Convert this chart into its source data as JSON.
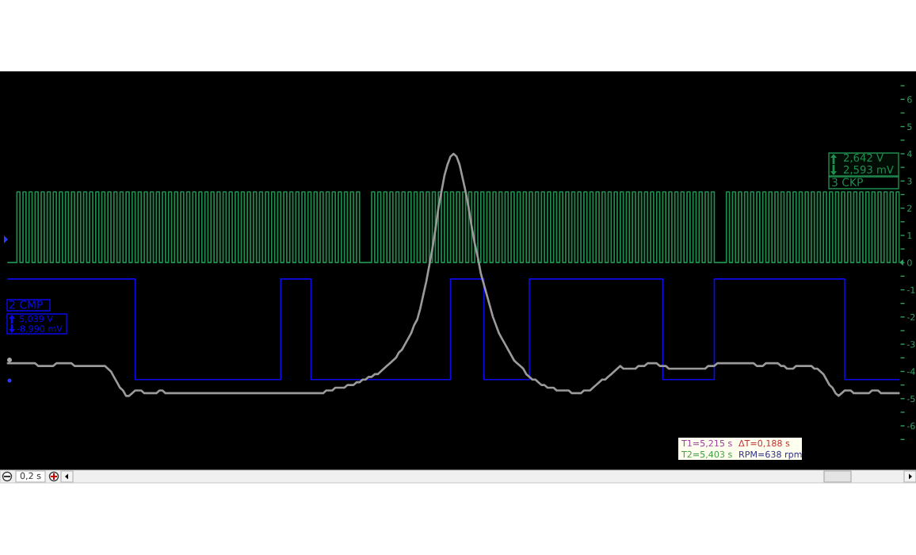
{
  "chart_data": {
    "type": "line",
    "tick_labels": "y",
    "categories": [
      null,
      null,
      null,
      null,
      null,
      null,
      null,
      null,
      null,
      null,
      null,
      null,
      null,
      null,
      null,
      null,
      null,
      null,
      null,
      null,
      null,
      null,
      null,
      null,
      null,
      null,
      null,
      null,
      null,
      null,
      null,
      null,
      null,
      null,
      null,
      null,
      null,
      null,
      null,
      null,
      null,
      null,
      null,
      null,
      null,
      null,
      null,
      null,
      null,
      null,
      null,
      null,
      null,
      null,
      null,
      null,
      null,
      null,
      null,
      null,
      null,
      null,
      null,
      null,
      null,
      null,
      null,
      null,
      null,
      null,
      null,
      null,
      null,
      null,
      null,
      null,
      null,
      null,
      null,
      null,
      null,
      null,
      null,
      null,
      null,
      null,
      null,
      null,
      null,
      null,
      null,
      null,
      null,
      null,
      null,
      null,
      null,
      null,
      null,
      null,
      null,
      null,
      null,
      null,
      null,
      null,
      null,
      null,
      null,
      null,
      null,
      null,
      null,
      null,
      null,
      null,
      null,
      null,
      null,
      null,
      null,
      null,
      null,
      null,
      null,
      null,
      null,
      null,
      null,
      null,
      null,
      null,
      null,
      null,
      null,
      null,
      null,
      null,
      null,
      null,
      null,
      null,
      null,
      null,
      null,
      null,
      null,
      null,
      null,
      null,
      null,
      null,
      null,
      null,
      null,
      null,
      null,
      null,
      null,
      null,
      null,
      null,
      null,
      null,
      null,
      null,
      null,
      null,
      null,
      null,
      null,
      null,
      null,
      null,
      null,
      null,
      null,
      null,
      null,
      null,
      null,
      null,
      null,
      null,
      null,
      null,
      null,
      null,
      null,
      null,
      null,
      null,
      null,
      null,
      null,
      null,
      null,
      null,
      null,
      null,
      null,
      null,
      null,
      null,
      null,
      null,
      null,
      null,
      null,
      null,
      null,
      null,
      null,
      null,
      null,
      null,
      null,
      null,
      null,
      null,
      null,
      null,
      null,
      null,
      null,
      null,
      null,
      null,
      null,
      null,
      null,
      null,
      null,
      null,
      null,
      null,
      null,
      null,
      null,
      null,
      null,
      null,
      null,
      null,
      null,
      null,
      null,
      null,
      null,
      null,
      null,
      null,
      null,
      null,
      null,
      null,
      null,
      null,
      null,
      null,
      null,
      null,
      null,
      null,
      null,
      null,
      null,
      null,
      null,
      null,
      null,
      null,
      null,
      null,
      null,
      null,
      null,
      null,
      null,
      null,
      null,
      null,
      null,
      null,
      null,
      null,
      null,
      null,
      null,
      null,
      null,
      null,
      null,
      null,
      null
    ],
    "series": [
      {
        "name": "3 CKP",
        "type": "step",
        "color": "#1f8f4f",
        "values": [
          0,
          0,
          0,
          2.6,
          0,
          2.6,
          0,
          2.6,
          0,
          2.6,
          0,
          2.6,
          0,
          2.6,
          0,
          2.6,
          0,
          2.6,
          0,
          2.6,
          0,
          2.6,
          0,
          2.6,
          0,
          2.6,
          0,
          2.6,
          0,
          2.6,
          0,
          2.6,
          0,
          2.6,
          0,
          2.6,
          0,
          2.6,
          0,
          2.6,
          0,
          2.6,
          0,
          2.6,
          0,
          2.6,
          0,
          2.6,
          0,
          2.6,
          0,
          2.6,
          0,
          2.6,
          0,
          2.6,
          0,
          2.6,
          0,
          2.6,
          0,
          2.6,
          0,
          2.6,
          0,
          2.6,
          0,
          2.6,
          0,
          2.6,
          0,
          2.6,
          0,
          2.6,
          0,
          2.6,
          0,
          2.6,
          0,
          2.6,
          0,
          2.6,
          0,
          2.6,
          0,
          2.6,
          0,
          2.6,
          0,
          2.6,
          0,
          2.6,
          0,
          2.6,
          0,
          2.6,
          0,
          2.6,
          0,
          2.6,
          0,
          2.6,
          0,
          2.6,
          0,
          2.6,
          0,
          2.6,
          0,
          2.6,
          0,
          2.6,
          0,
          2.6,
          0,
          2.6,
          0,
          0,
          0,
          0,
          2.6,
          0,
          2.6,
          0,
          2.6,
          0,
          2.6,
          0,
          2.6,
          0,
          2.6,
          0,
          2.6,
          0,
          2.6,
          0,
          2.6,
          0,
          2.6,
          0,
          2.6,
          0,
          2.6,
          0,
          2.6,
          0,
          2.6,
          0,
          2.6,
          0,
          2.6,
          0,
          2.6,
          0,
          2.6,
          0,
          2.6,
          0,
          2.6,
          0,
          2.6,
          0,
          2.6,
          0,
          2.6,
          0,
          2.6,
          0,
          2.6,
          0,
          2.6,
          0,
          2.6,
          0,
          2.6,
          0,
          2.6,
          0,
          2.6,
          0,
          2.6,
          0,
          2.6,
          0,
          2.6,
          0,
          2.6,
          0,
          2.6,
          0,
          2.6,
          0,
          2.6,
          0,
          2.6,
          0,
          2.6,
          0,
          2.6,
          0,
          2.6,
          0,
          2.6,
          0,
          2.6,
          0,
          2.6,
          0,
          2.6,
          0,
          2.6,
          0,
          2.6,
          0,
          2.6,
          0,
          2.6,
          0,
          2.6,
          0,
          2.6,
          0,
          2.6,
          0,
          2.6,
          0,
          2.6,
          0,
          2.6,
          0,
          2.6,
          0,
          2.6,
          0,
          0,
          0,
          0,
          2.6,
          0,
          2.6,
          0,
          2.6,
          0,
          2.6,
          0,
          2.6,
          0,
          2.6,
          0,
          2.6,
          0,
          2.6,
          0,
          2.6,
          0,
          2.6,
          0,
          2.6,
          0,
          2.6,
          0,
          2.6,
          0,
          2.6,
          0,
          2.6,
          0,
          2.6,
          0,
          2.6,
          0,
          2.6,
          0,
          2.6,
          0,
          2.6,
          0,
          2.6,
          0,
          2.6,
          0,
          2.6,
          0,
          2.6,
          0,
          2.6,
          0,
          2.6,
          0,
          2.6,
          0,
          2.6,
          0,
          2.6,
          0
        ]
      },
      {
        "name": "2 CMP",
        "type": "step",
        "color": "#0a0aeb",
        "values": [
          -0.6,
          -0.6,
          -0.6,
          -0.6,
          -0.6,
          -0.6,
          -0.6,
          -0.6,
          -0.6,
          -0.6,
          -0.6,
          -0.6,
          -0.6,
          -0.6,
          -0.6,
          -0.6,
          -0.6,
          -0.6,
          -0.6,
          -0.6,
          -0.6,
          -0.6,
          -0.6,
          -0.6,
          -0.6,
          -0.6,
          -0.6,
          -0.6,
          -0.6,
          -0.6,
          -0.6,
          -0.6,
          -0.6,
          -0.6,
          -0.6,
          -0.6,
          -0.6,
          -0.6,
          -0.6,
          -0.6,
          -0.6,
          -0.6,
          -4.3,
          -4.3,
          -4.3,
          -4.3,
          -4.3,
          -4.3,
          -4.3,
          -4.3,
          -4.3,
          -4.3,
          -4.3,
          -4.3,
          -4.3,
          -4.3,
          -4.3,
          -4.3,
          -4.3,
          -4.3,
          -4.3,
          -4.3,
          -4.3,
          -4.3,
          -4.3,
          -4.3,
          -4.3,
          -4.3,
          -4.3,
          -4.3,
          -4.3,
          -4.3,
          -4.3,
          -4.3,
          -4.3,
          -4.3,
          -4.3,
          -4.3,
          -4.3,
          -4.3,
          -4.3,
          -4.3,
          -4.3,
          -4.3,
          -4.3,
          -4.3,
          -4.3,
          -4.3,
          -4.3,
          -4.3,
          -0.6,
          -0.6,
          -0.6,
          -0.6,
          -0.6,
          -0.6,
          -0.6,
          -0.6,
          -0.6,
          -0.6,
          -4.3,
          -4.3,
          -4.3,
          -4.3,
          -4.3,
          -4.3,
          -4.3,
          -4.3,
          -4.3,
          -4.3,
          -4.3,
          -4.3,
          -4.3,
          -4.3,
          -4.3,
          -4.3,
          -4.3,
          -4.3,
          -4.3,
          -4.3,
          -4.3,
          -4.3,
          -4.3,
          -4.3,
          -4.3,
          -4.3,
          -4.3,
          -4.3,
          -4.3,
          -4.3,
          -4.3,
          -4.3,
          -4.3,
          -4.3,
          -4.3,
          -4.3,
          -4.3,
          -4.3,
          -4.3,
          -4.3,
          -4.3,
          -4.3,
          -4.3,
          -4.3,
          -4.3,
          -4.3,
          -0.6,
          -0.6,
          -0.6,
          -0.6,
          -0.6,
          -0.6,
          -0.6,
          -0.6,
          -0.6,
          -0.6,
          -0.6,
          -4.3,
          -4.3,
          -4.3,
          -4.3,
          -4.3,
          -4.3,
          -4.3,
          -4.3,
          -4.3,
          -4.3,
          -4.3,
          -4.3,
          -4.3,
          -4.3,
          -4.3,
          -0.6,
          -0.6,
          -0.6,
          -0.6,
          -0.6,
          -0.6,
          -0.6,
          -0.6,
          -0.6,
          -0.6,
          -0.6,
          -0.6,
          -0.6,
          -0.6,
          -0.6,
          -0.6,
          -0.6,
          -0.6,
          -0.6,
          -0.6,
          -0.6,
          -0.6,
          -0.6,
          -0.6,
          -0.6,
          -0.6,
          -0.6,
          -0.6,
          -0.6,
          -0.6,
          -0.6,
          -0.6,
          -0.6,
          -0.6,
          -0.6,
          -0.6,
          -0.6,
          -0.6,
          -0.6,
          -0.6,
          -0.6,
          -0.6,
          -0.6,
          -0.6,
          -4.3,
          -4.3,
          -4.3,
          -4.3,
          -4.3,
          -4.3,
          -4.3,
          -4.3,
          -4.3,
          -4.3,
          -4.3,
          -4.3,
          -4.3,
          -4.3,
          -4.3,
          -4.3,
          -4.3,
          -0.6,
          -0.6,
          -0.6,
          -0.6,
          -0.6,
          -0.6,
          -0.6,
          -0.6,
          -0.6,
          -0.6,
          -0.6,
          -0.6,
          -0.6,
          -0.6,
          -0.6,
          -0.6,
          -0.6,
          -0.6,
          -0.6,
          -0.6,
          -0.6,
          -0.6,
          -0.6,
          -0.6,
          -0.6,
          -0.6,
          -0.6,
          -0.6,
          -0.6,
          -0.6,
          -0.6,
          -0.6,
          -0.6,
          -0.6,
          -0.6,
          -0.6,
          -0.6,
          -0.6,
          -0.6,
          -0.6,
          -0.6,
          -0.6,
          -0.6,
          -4.3,
          -4.3,
          -4.3,
          -4.3,
          -4.3,
          -4.3,
          -4.3,
          -4.3,
          -4.3,
          -4.3,
          -4.3,
          -4.3,
          -4.3,
          -4.3,
          -4.3,
          -4.3,
          -4.3,
          -4.3,
          -4.3
        ]
      },
      {
        "color": "#9a9a9a",
        "values": [
          -3.7,
          -3.7,
          -3.7,
          -3.7,
          -3.7,
          -3.7,
          -3.7,
          -3.7,
          -3.7,
          -3.7,
          -3.8,
          -3.8,
          -3.8,
          -3.8,
          -3.8,
          -3.8,
          -3.7,
          -3.7,
          -3.7,
          -3.7,
          -3.7,
          -3.7,
          -3.8,
          -3.8,
          -3.8,
          -3.8,
          -3.8,
          -3.8,
          -3.8,
          -3.8,
          -3.8,
          -3.8,
          -3.8,
          -3.9,
          -4.0,
          -4.2,
          -4.4,
          -4.6,
          -4.7,
          -4.9,
          -4.9,
          -4.8,
          -4.7,
          -4.7,
          -4.7,
          -4.8,
          -4.8,
          -4.8,
          -4.8,
          -4.8,
          -4.7,
          -4.7,
          -4.8,
          -4.8,
          -4.8,
          -4.8,
          -4.8,
          -4.8,
          -4.8,
          -4.8,
          -4.8,
          -4.8,
          -4.8,
          -4.8,
          -4.8,
          -4.8,
          -4.8,
          -4.8,
          -4.8,
          -4.8,
          -4.8,
          -4.8,
          -4.8,
          -4.8,
          -4.8,
          -4.8,
          -4.8,
          -4.8,
          -4.8,
          -4.8,
          -4.8,
          -4.8,
          -4.8,
          -4.8,
          -4.8,
          -4.8,
          -4.8,
          -4.8,
          -4.8,
          -4.8,
          -4.8,
          -4.8,
          -4.8,
          -4.8,
          -4.8,
          -4.8,
          -4.8,
          -4.8,
          -4.8,
          -4.8,
          -4.8,
          -4.8,
          -4.8,
          -4.8,
          -4.8,
          -4.7,
          -4.7,
          -4.7,
          -4.6,
          -4.6,
          -4.6,
          -4.6,
          -4.5,
          -4.5,
          -4.5,
          -4.4,
          -4.4,
          -4.3,
          -4.3,
          -4.2,
          -4.2,
          -4.1,
          -4.1,
          -4.0,
          -3.9,
          -3.8,
          -3.7,
          -3.6,
          -3.5,
          -3.3,
          -3.2,
          -3.0,
          -2.8,
          -2.6,
          -2.3,
          -2.1,
          -1.7,
          -1.2,
          -0.7,
          -0.1,
          0.5,
          1.2,
          2.0,
          2.6,
          3.2,
          3.6,
          3.9,
          4.0,
          3.9,
          3.6,
          3.1,
          2.6,
          2.0,
          1.3,
          0.7,
          0.2,
          -0.4,
          -0.8,
          -1.2,
          -1.6,
          -2.0,
          -2.3,
          -2.6,
          -2.8,
          -3.0,
          -3.2,
          -3.4,
          -3.6,
          -3.7,
          -3.8,
          -3.9,
          -4.1,
          -4.2,
          -4.3,
          -4.3,
          -4.4,
          -4.5,
          -4.5,
          -4.6,
          -4.6,
          -4.6,
          -4.7,
          -4.7,
          -4.7,
          -4.7,
          -4.7,
          -4.8,
          -4.8,
          -4.8,
          -4.8,
          -4.7,
          -4.7,
          -4.7,
          -4.6,
          -4.5,
          -4.4,
          -4.3,
          -4.3,
          -4.2,
          -4.1,
          -4.0,
          -3.9,
          -3.8,
          -3.9,
          -3.9,
          -3.9,
          -3.9,
          -3.9,
          -3.8,
          -3.8,
          -3.8,
          -3.7,
          -3.7,
          -3.7,
          -3.7,
          -3.8,
          -3.8,
          -3.8,
          -3.9,
          -3.9,
          -3.9,
          -3.9,
          -3.9,
          -3.9,
          -3.9,
          -3.9,
          -3.9,
          -3.9,
          -3.9,
          -3.9,
          -3.9,
          -3.8,
          -3.8,
          -3.8,
          -3.7,
          -3.7,
          -3.7,
          -3.7,
          -3.7,
          -3.7,
          -3.7,
          -3.7,
          -3.7,
          -3.7,
          -3.7,
          -3.7,
          -3.7,
          -3.8,
          -3.8,
          -3.8,
          -3.7,
          -3.7,
          -3.7,
          -3.7,
          -3.7,
          -3.8,
          -3.8,
          -3.9,
          -3.9,
          -3.9,
          -3.8,
          -3.8,
          -3.8,
          -3.8,
          -3.8,
          -3.8,
          -3.9,
          -3.9,
          -4.0,
          -4.1,
          -4.3,
          -4.5,
          -4.6,
          -4.8,
          -4.9,
          -4.8,
          -4.7,
          -4.7,
          -4.7,
          -4.8,
          -4.8,
          -4.8,
          -4.8,
          -4.8,
          -4.8,
          -4.7,
          -4.7,
          -4.7,
          -4.8,
          -4.8,
          -4.8,
          -4.8,
          -4.8,
          -4.8,
          -4.8
        ]
      }
    ],
    "ylim": [
      -7.6,
      7.0
    ],
    "yticks": [
      {
        "value": -6.5,
        "label": null
      },
      -6,
      {
        "value": -5.5,
        "label": null
      },
      -5,
      {
        "value": -4.5,
        "label": null
      },
      -4,
      {
        "value": -3.5,
        "label": null
      },
      -3,
      {
        "value": -2.5,
        "label": null
      },
      -2,
      {
        "value": -1.5,
        "label": null
      },
      -1,
      {
        "value": -0.5,
        "label": null
      },
      0,
      {
        "value": 0.5,
        "label": null
      },
      1,
      {
        "value": 1.5,
        "label": null
      },
      2,
      {
        "value": 2.5,
        "label": null
      },
      3,
      {
        "value": 3.5,
        "label": null
      },
      4,
      {
        "value": 4.5,
        "label": null
      },
      5,
      {
        "value": 5.5,
        "label": null
      },
      6,
      {
        "value": 6.5,
        "label": null
      }
    ],
    "annotations": [
      "2,642 V",
      "2,593 mV",
      "5,039 V",
      "-8,990 mV",
      "T1=5,215 s",
      "ΔT=0,188 s",
      "T2=5,403 s",
      "RPM=638 rpm",
      "0,2 s"
    ]
  }
}
